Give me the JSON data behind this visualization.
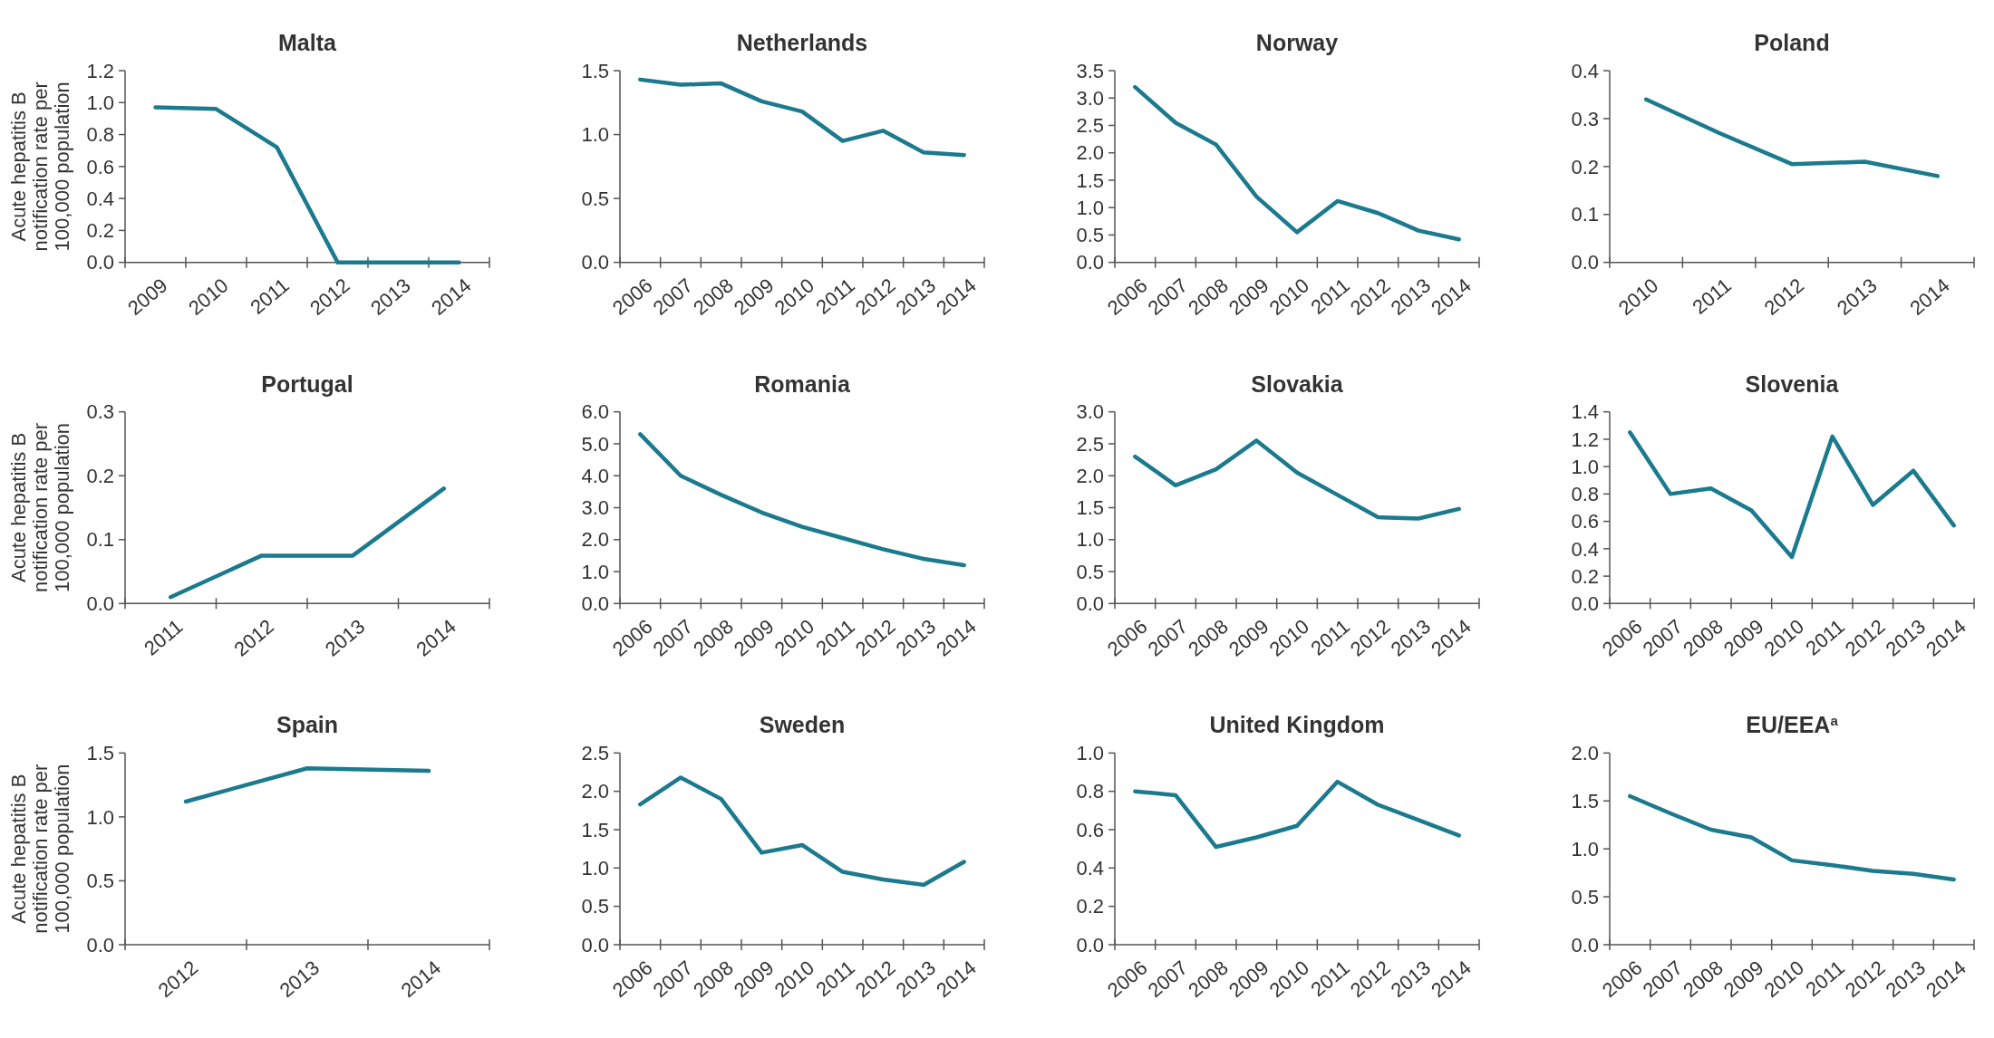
{
  "chart_data": [
    {
      "type": "line",
      "title": "Malta",
      "ylabel": "Acute hepatitis B notification rate per 100,000 population",
      "categories": [
        "2009",
        "2010",
        "2011",
        "2012",
        "2013",
        "2014"
      ],
      "series": [
        {
          "color": "#1b7a8e",
          "values": [
            0.97,
            0.96,
            0.72,
            0,
            0,
            0
          ]
        }
      ],
      "ylim": [
        0,
        1.2
      ],
      "yticks": [
        {
          "value": 0,
          "label": "0.0"
        },
        {
          "value": 0.2,
          "label": "0.2"
        },
        {
          "value": 0.4,
          "label": "0.4"
        },
        {
          "value": 0.6,
          "label": "0.6"
        },
        {
          "value": 0.8,
          "label": "0.8"
        },
        {
          "value": 1,
          "label": "1.0"
        },
        {
          "value": 1.2,
          "label": "1.2"
        }
      ]
    },
    {
      "type": "line",
      "title": "Netherlands",
      "categories": [
        "2006",
        "2007",
        "2008",
        "2009",
        "2010",
        "2011",
        "2012",
        "2013",
        "2014"
      ],
      "series": [
        {
          "color": "#1b7a8e",
          "values": [
            1.43,
            1.39,
            1.4,
            1.26,
            1.18,
            0.95,
            1.03,
            0.86,
            0.84
          ]
        }
      ],
      "ylim": [
        0,
        1.5
      ],
      "yticks": [
        {
          "value": 0,
          "label": "0.0"
        },
        {
          "value": 0.5,
          "label": "0.5"
        },
        {
          "value": 1,
          "label": "1.0"
        },
        {
          "value": 1.5,
          "label": "1.5"
        }
      ]
    },
    {
      "type": "line",
      "title": "Norway",
      "categories": [
        "2006",
        "2007",
        "2008",
        "2009",
        "2010",
        "2011",
        "2012",
        "2013",
        "2014"
      ],
      "series": [
        {
          "color": "#1b7a8e",
          "values": [
            3.2,
            2.55,
            2.15,
            1.2,
            0.55,
            1.12,
            0.9,
            0.58,
            0.42
          ]
        }
      ],
      "ylim": [
        0,
        3.5
      ],
      "yticks": [
        {
          "value": 0,
          "label": "0.0"
        },
        {
          "value": 0.5,
          "label": "0.5"
        },
        {
          "value": 1,
          "label": "1.0"
        },
        {
          "value": 1.5,
          "label": "1.5"
        },
        {
          "value": 2,
          "label": "2.0"
        },
        {
          "value": 2.5,
          "label": "2.5"
        },
        {
          "value": 3,
          "label": "3.0"
        },
        {
          "value": 3.5,
          "label": "3.5"
        }
      ]
    },
    {
      "type": "line",
      "title": "Poland",
      "categories": [
        "2010",
        "2011",
        "2012",
        "2013",
        "2014"
      ],
      "series": [
        {
          "color": "#1b7a8e",
          "values": [
            0.34,
            0.27,
            0.205,
            0.21,
            0.18
          ]
        }
      ],
      "ylim": [
        0,
        0.4
      ],
      "yticks": [
        {
          "value": 0,
          "label": "0.0"
        },
        0.1,
        0.2,
        0.3,
        0.4
      ]
    },
    {
      "type": "line",
      "title": "Portugal",
      "ylabel": "Acute hepatitis B notification rate per 100,000 population",
      "categories": [
        "2011",
        "2012",
        "2013",
        "2014"
      ],
      "series": [
        {
          "color": "#1b7a8e",
          "values": [
            0.01,
            0.075,
            0.075,
            0.18
          ]
        }
      ],
      "ylim": [
        0,
        0.3
      ],
      "yticks": [
        {
          "value": 0,
          "label": "0.0"
        },
        0.1,
        0.2,
        0.3
      ]
    },
    {
      "type": "line",
      "title": "Romania",
      "categories": [
        "2006",
        "2007",
        "2008",
        "2009",
        "2010",
        "2011",
        "2012",
        "2013",
        "2014"
      ],
      "series": [
        {
          "color": "#1b7a8e",
          "values": [
            5.3,
            4.0,
            3.4,
            2.85,
            2.4,
            2.05,
            1.7,
            1.4,
            1.2
          ]
        }
      ],
      "ylim": [
        0,
        6
      ],
      "yticks": [
        {
          "value": 0,
          "label": "0.0"
        },
        {
          "value": 1,
          "label": "1.0"
        },
        {
          "value": 2,
          "label": "2.0"
        },
        {
          "value": 3,
          "label": "3.0"
        },
        {
          "value": 4,
          "label": "4.0"
        },
        {
          "value": 5,
          "label": "5.0"
        },
        {
          "value": 6,
          "label": "6.0"
        }
      ]
    },
    {
      "type": "line",
      "title": "Slovakia",
      "categories": [
        "2006",
        "2007",
        "2008",
        "2009",
        "2010",
        "2011",
        "2012",
        "2013",
        "2014"
      ],
      "series": [
        {
          "color": "#1b7a8e",
          "values": [
            2.3,
            1.85,
            2.1,
            2.55,
            2.05,
            1.7,
            1.35,
            1.33,
            1.48
          ]
        }
      ],
      "ylim": [
        0,
        3
      ],
      "yticks": [
        {
          "value": 0,
          "label": "0.0"
        },
        {
          "value": 0.5,
          "label": "0.5"
        },
        {
          "value": 1,
          "label": "1.0"
        },
        {
          "value": 1.5,
          "label": "1.5"
        },
        {
          "value": 2,
          "label": "2.0"
        },
        {
          "value": 2.5,
          "label": "2.5"
        },
        {
          "value": 3,
          "label": "3.0"
        }
      ]
    },
    {
      "type": "line",
      "title": "Slovenia",
      "categories": [
        "2006",
        "2007",
        "2008",
        "2009",
        "2010",
        "2011",
        "2012",
        "2013",
        "2014"
      ],
      "series": [
        {
          "color": "#1b7a8e",
          "values": [
            1.25,
            0.8,
            0.84,
            0.68,
            0.34,
            1.22,
            0.72,
            0.97,
            0.57
          ]
        }
      ],
      "ylim": [
        0,
        1.4
      ],
      "yticks": [
        {
          "value": 0,
          "label": "0.0"
        },
        {
          "value": 0.2,
          "label": "0.2"
        },
        {
          "value": 0.4,
          "label": "0.4"
        },
        {
          "value": 0.6,
          "label": "0.6"
        },
        {
          "value": 0.8,
          "label": "0.8"
        },
        {
          "value": 1,
          "label": "1.0"
        },
        {
          "value": 1.2,
          "label": "1.2"
        },
        {
          "value": 1.4,
          "label": "1.4"
        }
      ]
    },
    {
      "type": "line",
      "title": "Spain",
      "ylabel": "Acute hepatitis B notification rate per 100,000 population",
      "categories": [
        "2012",
        "2013",
        "2014"
      ],
      "series": [
        {
          "color": "#1b7a8e",
          "values": [
            1.12,
            1.38,
            1.36
          ]
        }
      ],
      "ylim": [
        0,
        1.5
      ],
      "yticks": [
        {
          "value": 0,
          "label": "0.0"
        },
        {
          "value": 0.5,
          "label": "0.5"
        },
        {
          "value": 1,
          "label": "1.0"
        },
        {
          "value": 1.5,
          "label": "1.5"
        }
      ]
    },
    {
      "type": "line",
      "title": "Sweden",
      "categories": [
        "2006",
        "2007",
        "2008",
        "2009",
        "2010",
        "2011",
        "2012",
        "2013",
        "2014"
      ],
      "series": [
        {
          "color": "#1b7a8e",
          "values": [
            1.83,
            2.18,
            1.9,
            1.2,
            1.3,
            0.95,
            0.85,
            0.78,
            1.08
          ]
        }
      ],
      "ylim": [
        0,
        2.5
      ],
      "yticks": [
        {
          "value": 0,
          "label": "0.0"
        },
        {
          "value": 0.5,
          "label": "0.5"
        },
        {
          "value": 1,
          "label": "1.0"
        },
        {
          "value": 1.5,
          "label": "1.5"
        },
        {
          "value": 2,
          "label": "2.0"
        },
        {
          "value": 2.5,
          "label": "2.5"
        }
      ]
    },
    {
      "type": "line",
      "title": "United Kingdom",
      "categories": [
        "2006",
        "2007",
        "2008",
        "2009",
        "2010",
        "2011",
        "2012",
        "2013",
        "2014"
      ],
      "series": [
        {
          "color": "#1b7a8e",
          "values": [
            0.8,
            0.78,
            0.51,
            0.56,
            0.62,
            0.85,
            0.73,
            0.65,
            0.57
          ]
        }
      ],
      "ylim": [
        0,
        1
      ],
      "yticks": [
        {
          "value": 0,
          "label": "0.0"
        },
        {
          "value": 0.2,
          "label": "0.2"
        },
        {
          "value": 0.4,
          "label": "0.4"
        },
        {
          "value": 0.6,
          "label": "0.6"
        },
        {
          "value": 0.8,
          "label": "0.8"
        },
        {
          "value": 1,
          "label": "1.0"
        }
      ]
    },
    {
      "type": "line",
      "title": "EU/EEA$^{a}$",
      "categories": [
        "2006",
        "2007",
        "2008",
        "2009",
        "2010",
        "2011",
        "2012",
        "2013",
        "2014"
      ],
      "series": [
        {
          "color": "#1b7a8e",
          "values": [
            1.55,
            1.37,
            1.2,
            1.12,
            0.88,
            0.83,
            0.77,
            0.74,
            0.68
          ]
        }
      ],
      "ylim": [
        0,
        2
      ],
      "yticks": [
        {
          "value": 0,
          "label": "0.0"
        },
        {
          "value": 0.5,
          "label": "0.5"
        },
        {
          "value": 1,
          "label": "1.0"
        },
        {
          "value": 1.5,
          "label": "1.5"
        },
        {
          "value": 2,
          "label": "2.0"
        }
      ]
    }
  ]
}
